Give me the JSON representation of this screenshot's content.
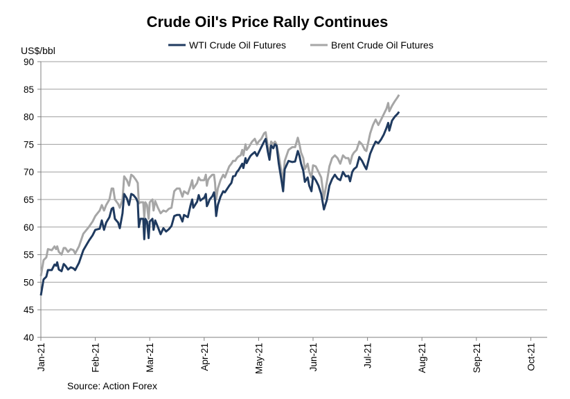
{
  "chart_data": {
    "type": "line",
    "title": "Crude Oil's Price Rally Continues",
    "ylabel": "US$/bbl",
    "xlabel": "",
    "ylim": [
      40,
      90
    ],
    "y_ticks": [
      40,
      45,
      50,
      55,
      60,
      65,
      70,
      75,
      80,
      85,
      90
    ],
    "x_categories": [
      "Jan-21",
      "Feb-21",
      "Mar-21",
      "Apr-21",
      "May-21",
      "Jun-21",
      "Jul-21",
      "Aug-21",
      "Sep-21",
      "Oct-21"
    ],
    "x_range": [
      0,
      9.3
    ],
    "grid": true,
    "legend_position": "top",
    "source": "Source: Action Forex",
    "series": [
      {
        "name": "WTI Crude Oil Futures",
        "color": "#1f3a5f",
        "points": [
          [
            0.0,
            47.6
          ],
          [
            0.05,
            50.5
          ],
          [
            0.1,
            51.0
          ],
          [
            0.13,
            52.2
          ],
          [
            0.2,
            52.2
          ],
          [
            0.25,
            53.2
          ],
          [
            0.28,
            53.0
          ],
          [
            0.3,
            53.6
          ],
          [
            0.33,
            52.3
          ],
          [
            0.38,
            52.0
          ],
          [
            0.42,
            53.3
          ],
          [
            0.45,
            53.0
          ],
          [
            0.5,
            52.3
          ],
          [
            0.55,
            52.7
          ],
          [
            0.6,
            52.5
          ],
          [
            0.63,
            52.2
          ],
          [
            0.7,
            53.5
          ],
          [
            0.78,
            55.8
          ],
          [
            0.88,
            57.5
          ],
          [
            0.95,
            58.5
          ],
          [
            1.0,
            59.5
          ],
          [
            1.08,
            59.7
          ],
          [
            1.12,
            61.2
          ],
          [
            1.16,
            59.5
          ],
          [
            1.2,
            60.8
          ],
          [
            1.26,
            61.8
          ],
          [
            1.3,
            63.3
          ],
          [
            1.33,
            63.5
          ],
          [
            1.36,
            61.5
          ],
          [
            1.42,
            60.8
          ],
          [
            1.45,
            59.8
          ],
          [
            1.5,
            62.5
          ],
          [
            1.53,
            66.0
          ],
          [
            1.58,
            65.2
          ],
          [
            1.62,
            64.0
          ],
          [
            1.66,
            66.0
          ],
          [
            1.7,
            65.8
          ],
          [
            1.75,
            65.2
          ],
          [
            1.78,
            64.5
          ],
          [
            1.8,
            60.0
          ],
          [
            1.83,
            61.5
          ],
          [
            1.88,
            61.5
          ],
          [
            1.9,
            57.8
          ],
          [
            1.92,
            61.5
          ],
          [
            1.95,
            61.0
          ],
          [
            1.98,
            58.0
          ],
          [
            2.0,
            61.0
          ],
          [
            2.05,
            61.5
          ],
          [
            2.07,
            59.5
          ],
          [
            2.1,
            61.2
          ],
          [
            2.15,
            60.0
          ],
          [
            2.2,
            58.7
          ],
          [
            2.25,
            59.8
          ],
          [
            2.3,
            59.2
          ],
          [
            2.35,
            59.6
          ],
          [
            2.4,
            60.2
          ],
          [
            2.45,
            62.0
          ],
          [
            2.5,
            62.2
          ],
          [
            2.55,
            62.2
          ],
          [
            2.6,
            61.0
          ],
          [
            2.63,
            62.2
          ],
          [
            2.7,
            61.8
          ],
          [
            2.75,
            64.0
          ],
          [
            2.78,
            65.0
          ],
          [
            2.8,
            63.5
          ],
          [
            2.87,
            64.6
          ],
          [
            2.9,
            65.8
          ],
          [
            2.93,
            64.8
          ],
          [
            2.98,
            65.2
          ],
          [
            3.0,
            65.3
          ],
          [
            3.03,
            66.0
          ],
          [
            3.05,
            63.8
          ],
          [
            3.07,
            64.2
          ],
          [
            3.1,
            65.0
          ],
          [
            3.15,
            65.6
          ],
          [
            3.18,
            66.3
          ],
          [
            3.2,
            64.8
          ],
          [
            3.22,
            62.0
          ],
          [
            3.25,
            64.0
          ],
          [
            3.3,
            65.5
          ],
          [
            3.35,
            66.5
          ],
          [
            3.38,
            66.3
          ],
          [
            3.42,
            66.9
          ],
          [
            3.46,
            67.5
          ],
          [
            3.5,
            68.0
          ],
          [
            3.53,
            69.2
          ],
          [
            3.57,
            69.3
          ],
          [
            3.6,
            70.0
          ],
          [
            3.63,
            70.3
          ],
          [
            3.67,
            71.0
          ],
          [
            3.7,
            71.5
          ],
          [
            3.72,
            70.7
          ],
          [
            3.76,
            72.5
          ],
          [
            3.78,
            71.6
          ],
          [
            3.82,
            72.4
          ],
          [
            3.85,
            72.9
          ],
          [
            3.88,
            73.2
          ],
          [
            3.93,
            73.6
          ],
          [
            3.97,
            72.9
          ],
          [
            4.0,
            73.5
          ],
          [
            4.05,
            74.5
          ],
          [
            4.1,
            75.5
          ],
          [
            4.13,
            76.0
          ],
          [
            4.17,
            73.6
          ],
          [
            4.2,
            72.2
          ],
          [
            4.23,
            74.8
          ],
          [
            4.27,
            74.3
          ],
          [
            4.3,
            75.0
          ],
          [
            4.33,
            74.8
          ],
          [
            4.37,
            71.5
          ],
          [
            4.42,
            68.5
          ],
          [
            4.45,
            66.5
          ],
          [
            4.48,
            70.5
          ],
          [
            4.55,
            72.0
          ],
          [
            4.62,
            71.8
          ],
          [
            4.67,
            71.9
          ],
          [
            4.72,
            73.8
          ],
          [
            4.75,
            72.9
          ],
          [
            4.78,
            71.5
          ],
          [
            4.82,
            70.2
          ],
          [
            4.85,
            68.2
          ],
          [
            4.9,
            69.0
          ],
          [
            4.93,
            67.5
          ],
          [
            4.97,
            66.5
          ],
          [
            5.0,
            69.2
          ],
          [
            5.05,
            68.5
          ],
          [
            5.1,
            67.5
          ],
          [
            5.15,
            66.0
          ],
          [
            5.2,
            63.2
          ],
          [
            5.25,
            64.8
          ],
          [
            5.3,
            67.5
          ],
          [
            5.35,
            68.7
          ],
          [
            5.4,
            69.5
          ],
          [
            5.45,
            68.8
          ],
          [
            5.5,
            68.5
          ],
          [
            5.55,
            70.0
          ],
          [
            5.6,
            69.2
          ],
          [
            5.65,
            69.3
          ],
          [
            5.68,
            68.3
          ],
          [
            5.72,
            70.0
          ],
          [
            5.75,
            70.5
          ],
          [
            5.8,
            70.9
          ],
          [
            5.85,
            72.7
          ],
          [
            5.9,
            72.0
          ],
          [
            5.95,
            71.0
          ],
          [
            5.98,
            70.5
          ],
          [
            6.05,
            73.3
          ],
          [
            6.1,
            74.5
          ],
          [
            6.15,
            75.5
          ],
          [
            6.2,
            75.2
          ],
          [
            6.25,
            75.9
          ],
          [
            6.3,
            76.8
          ],
          [
            6.35,
            78.0
          ],
          [
            6.38,
            78.9
          ],
          [
            6.4,
            77.5
          ],
          [
            6.45,
            79.3
          ],
          [
            6.5,
            80.0
          ],
          [
            6.55,
            80.5
          ],
          [
            6.58,
            80.9
          ]
        ]
      },
      {
        "name": "Brent Crude Oil Futures",
        "color": "#a6a6a6",
        "points": [
          [
            0.0,
            51.1
          ],
          [
            0.05,
            54.0
          ],
          [
            0.1,
            54.5
          ],
          [
            0.13,
            56.0
          ],
          [
            0.2,
            55.8
          ],
          [
            0.25,
            56.5
          ],
          [
            0.28,
            56.0
          ],
          [
            0.3,
            56.5
          ],
          [
            0.33,
            55.5
          ],
          [
            0.38,
            55.0
          ],
          [
            0.42,
            56.2
          ],
          [
            0.45,
            56.2
          ],
          [
            0.5,
            55.5
          ],
          [
            0.55,
            56.0
          ],
          [
            0.6,
            55.8
          ],
          [
            0.63,
            55.2
          ],
          [
            0.7,
            56.5
          ],
          [
            0.78,
            58.8
          ],
          [
            0.88,
            60.0
          ],
          [
            0.95,
            61.0
          ],
          [
            1.0,
            62.0
          ],
          [
            1.08,
            63.0
          ],
          [
            1.12,
            64.0
          ],
          [
            1.16,
            63.0
          ],
          [
            1.2,
            64.0
          ],
          [
            1.26,
            65.0
          ],
          [
            1.3,
            67.0
          ],
          [
            1.33,
            67.0
          ],
          [
            1.36,
            65.0
          ],
          [
            1.42,
            64.2
          ],
          [
            1.45,
            63.5
          ],
          [
            1.5,
            65.0
          ],
          [
            1.53,
            69.2
          ],
          [
            1.58,
            68.5
          ],
          [
            1.62,
            67.5
          ],
          [
            1.66,
            69.5
          ],
          [
            1.7,
            69.2
          ],
          [
            1.75,
            68.5
          ],
          [
            1.78,
            68.0
          ],
          [
            1.8,
            64.3
          ],
          [
            1.83,
            64.5
          ],
          [
            1.88,
            64.5
          ],
          [
            1.9,
            61.8
          ],
          [
            1.92,
            64.5
          ],
          [
            1.95,
            64.0
          ],
          [
            1.98,
            61.5
          ],
          [
            2.0,
            64.5
          ],
          [
            2.05,
            65.0
          ],
          [
            2.07,
            63.0
          ],
          [
            2.1,
            64.7
          ],
          [
            2.15,
            63.5
          ],
          [
            2.2,
            62.5
          ],
          [
            2.25,
            63.0
          ],
          [
            2.3,
            62.8
          ],
          [
            2.35,
            63.3
          ],
          [
            2.4,
            63.5
          ],
          [
            2.45,
            66.5
          ],
          [
            2.5,
            67.0
          ],
          [
            2.55,
            67.0
          ],
          [
            2.6,
            65.5
          ],
          [
            2.63,
            66.5
          ],
          [
            2.7,
            66.0
          ],
          [
            2.75,
            67.5
          ],
          [
            2.78,
            68.5
          ],
          [
            2.8,
            67.0
          ],
          [
            2.87,
            68.0
          ],
          [
            2.9,
            69.0
          ],
          [
            2.93,
            68.5
          ],
          [
            2.98,
            68.5
          ],
          [
            3.0,
            68.5
          ],
          [
            3.03,
            69.5
          ],
          [
            3.05,
            67.5
          ],
          [
            3.07,
            68.5
          ],
          [
            3.1,
            69.0
          ],
          [
            3.15,
            69.5
          ],
          [
            3.18,
            69.5
          ],
          [
            3.2,
            68.0
          ],
          [
            3.22,
            65.0
          ],
          [
            3.25,
            67.0
          ],
          [
            3.3,
            68.5
          ],
          [
            3.35,
            69.5
          ],
          [
            3.38,
            69.0
          ],
          [
            3.42,
            70.0
          ],
          [
            3.46,
            71.0
          ],
          [
            3.5,
            71.5
          ],
          [
            3.53,
            72.0
          ],
          [
            3.57,
            72.0
          ],
          [
            3.6,
            72.5
          ],
          [
            3.63,
            72.8
          ],
          [
            3.67,
            73.0
          ],
          [
            3.7,
            74.0
          ],
          [
            3.72,
            73.0
          ],
          [
            3.76,
            75.0
          ],
          [
            3.78,
            74.0
          ],
          [
            3.82,
            74.5
          ],
          [
            3.85,
            75.0
          ],
          [
            3.88,
            75.5
          ],
          [
            3.93,
            76.0
          ],
          [
            3.97,
            75.0
          ],
          [
            4.0,
            75.5
          ],
          [
            4.05,
            76.0
          ],
          [
            4.1,
            77.0
          ],
          [
            4.13,
            77.2
          ],
          [
            4.17,
            74.5
          ],
          [
            4.2,
            73.5
          ],
          [
            4.23,
            75.5
          ],
          [
            4.27,
            75.0
          ],
          [
            4.3,
            75.5
          ],
          [
            4.33,
            75.0
          ],
          [
            4.37,
            73.0
          ],
          [
            4.42,
            70.0
          ],
          [
            4.45,
            68.5
          ],
          [
            4.48,
            72.0
          ],
          [
            4.55,
            74.0
          ],
          [
            4.62,
            74.5
          ],
          [
            4.67,
            74.5
          ],
          [
            4.72,
            76.2
          ],
          [
            4.75,
            75.0
          ],
          [
            4.78,
            73.5
          ],
          [
            4.82,
            72.5
          ],
          [
            4.85,
            70.5
          ],
          [
            4.9,
            71.5
          ],
          [
            4.93,
            70.0
          ],
          [
            4.97,
            69.0
          ],
          [
            5.0,
            71.2
          ],
          [
            5.05,
            71.0
          ],
          [
            5.1,
            70.0
          ],
          [
            5.15,
            69.0
          ],
          [
            5.2,
            65.2
          ],
          [
            5.25,
            68.0
          ],
          [
            5.3,
            71.0
          ],
          [
            5.35,
            72.5
          ],
          [
            5.4,
            73.0
          ],
          [
            5.45,
            72.5
          ],
          [
            5.5,
            71.5
          ],
          [
            5.55,
            73.0
          ],
          [
            5.6,
            72.5
          ],
          [
            5.65,
            72.5
          ],
          [
            5.68,
            71.5
          ],
          [
            5.72,
            73.0
          ],
          [
            5.75,
            73.5
          ],
          [
            5.8,
            74.0
          ],
          [
            5.85,
            75.5
          ],
          [
            5.9,
            75.0
          ],
          [
            5.95,
            74.0
          ],
          [
            5.98,
            73.8
          ],
          [
            6.05,
            77.0
          ],
          [
            6.1,
            78.5
          ],
          [
            6.15,
            79.5
          ],
          [
            6.2,
            78.5
          ],
          [
            6.25,
            79.5
          ],
          [
            6.3,
            80.5
          ],
          [
            6.35,
            81.5
          ],
          [
            6.38,
            82.5
          ],
          [
            6.4,
            81.0
          ],
          [
            6.45,
            82.0
          ],
          [
            6.5,
            82.8
          ],
          [
            6.55,
            83.5
          ],
          [
            6.58,
            84.0
          ]
        ]
      }
    ]
  }
}
